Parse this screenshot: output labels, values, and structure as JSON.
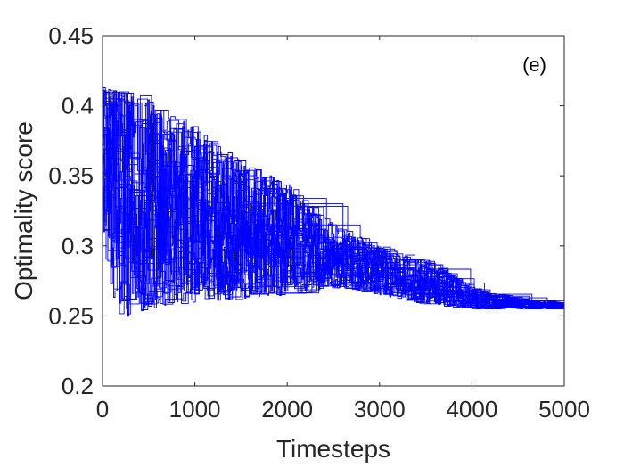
{
  "chart_data": {
    "type": "line",
    "title": "",
    "panel_label": "(e)",
    "xlabel": "Timesteps",
    "ylabel": "Optimality score",
    "xlim": [
      0,
      5000
    ],
    "ylim": [
      0.2,
      0.45
    ],
    "xticks": [
      0,
      1000,
      2000,
      3000,
      4000,
      5000
    ],
    "xtick_labels": [
      "0",
      "1000",
      "2000",
      "3000",
      "4000",
      "5000"
    ],
    "yticks": [
      0.2,
      0.25,
      0.3,
      0.35,
      0.4,
      0.45
    ],
    "ytick_labels": [
      "0.2",
      "0.25",
      "0.3",
      "0.35",
      "0.4",
      "0.45"
    ],
    "grid": false,
    "legend": "none",
    "line_color": "#0000ff",
    "series_count": 40,
    "envelope": {
      "x": [
        0,
        100,
        300,
        500,
        1000,
        1500,
        2000,
        2500,
        3000,
        3500,
        4000,
        4500,
        5000
      ],
      "upper": [
        0.415,
        0.413,
        0.41,
        0.405,
        0.385,
        0.36,
        0.345,
        0.315,
        0.3,
        0.29,
        0.27,
        0.262,
        0.26
      ],
      "lower": [
        0.31,
        0.235,
        0.25,
        0.255,
        0.26,
        0.262,
        0.265,
        0.27,
        0.265,
        0.258,
        0.255,
        0.255,
        0.255
      ],
      "mean": [
        0.345,
        0.34,
        0.335,
        0.33,
        0.315,
        0.3,
        0.295,
        0.285,
        0.28,
        0.27,
        0.26,
        0.257,
        0.256
      ]
    }
  }
}
